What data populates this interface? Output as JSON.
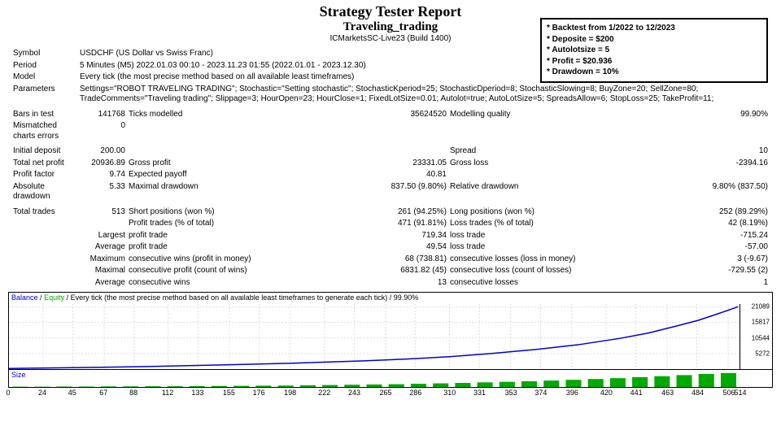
{
  "header": {
    "title": "Strategy Tester Report",
    "subtitle": "Traveling_trading",
    "broker": "ICMarketsSC-Live23 (Build 1400)"
  },
  "note_box": {
    "lines": [
      "Backtest from 1/2022 to 12/2023",
      "Deposite = $200",
      "Autolotsize = 5",
      "Profit = $20.936",
      "Drawdown = 10%"
    ]
  },
  "info": {
    "symbol_label": "Symbol",
    "symbol_value": "USDCHF (US Dollar vs Swiss Franc)",
    "period_label": "Period",
    "period_value": "5 Minutes (M5) 2022.01.03 00:10 - 2023.11.23 01:55 (2022.01.01 - 2023.12.30)",
    "model_label": "Model",
    "model_value": "Every tick (the most precise method based on all available least timeframes)",
    "params_label": "Parameters",
    "params_value": "Settings=\"ROBOT TRAVELING TRADING\"; Stochastic=\"Setting stochastic\"; StochasticKperiod=25; StochasticDperiod=8; StochasticSlowing=8; BuyZone=20; SellZone=80; TradeComments=\"Traveling trading\"; Slippage=3; HourOpen=23; HourClose=1; FixedLotSize=0.01; Autolot=true; AutoLotSize=5; SpreadsAllow=6; StopLoss=25; TakeProfit=11;"
  },
  "row_bars": {
    "c1_label": "Bars in test",
    "c1_val": "141768",
    "c2_label": "Ticks modelled",
    "c2_val": "35624520",
    "c3_label": "Modelling quality",
    "c3_val": "99.90%"
  },
  "row_mismatch": {
    "c1_label": "Mismatched charts errors",
    "c1_val": "0"
  },
  "row_deposit": {
    "c1_label": "Initial deposit",
    "c1_val": "200.00",
    "c3_label": "Spread",
    "c3_val": "10"
  },
  "row_profit": {
    "c1_label": "Total net profit",
    "c1_val": "20936.89",
    "c2_label": "Gross profit",
    "c2_val": "23331.05",
    "c3_label": "Gross loss",
    "c3_val": "-2394.16"
  },
  "row_pf": {
    "c1_label": "Profit factor",
    "c1_val": "9.74",
    "c2_label": "Expected payoff",
    "c2_val": "40.81"
  },
  "row_dd": {
    "c1_label": "Absolute drawdown",
    "c1_val": "5.33",
    "c2_label": "Maximal drawdown",
    "c2_val": "837.50 (9.80%)",
    "c3_label": "Relative drawdown",
    "c3_val": "9.80% (837.50)"
  },
  "row_trades": {
    "c1_label": "Total trades",
    "c1_val": "513",
    "c2_label": "Short positions (won %)",
    "c2_val": "261 (94.25%)",
    "c3_label": "Long positions (won %)",
    "c3_val": "252 (89.29%)"
  },
  "row_pt": {
    "c2_label": "Profit trades (% of total)",
    "c2_val": "471 (91.81%)",
    "c3_label": "Loss trades (% of total)",
    "c3_val": "42 (8.19%)"
  },
  "row_largest": {
    "prefix": "Largest",
    "c2_label": "profit trade",
    "c2_val": "719.34",
    "c3_label": "loss trade",
    "c3_val": "-715.24"
  },
  "row_avg": {
    "prefix": "Average",
    "c2_label": "profit trade",
    "c2_val": "49.54",
    "c3_label": "loss trade",
    "c3_val": "-57.00"
  },
  "row_maxc": {
    "prefix": "Maximum",
    "c2_label": "consecutive wins (profit in money)",
    "c2_val": "68 (738.81)",
    "c3_label": "consecutive losses (loss in money)",
    "c3_val": "3 (-9.67)"
  },
  "row_maxp": {
    "prefix": "Maximal",
    "c2_label": "consecutive profit (count of wins)",
    "c2_val": "6831.82 (45)",
    "c3_label": "consecutive loss (count of losses)",
    "c3_val": "-729.55 (2)"
  },
  "row_avgc": {
    "prefix": "Average",
    "c2_label": "consecutive wins",
    "c2_val": "13",
    "c3_label": "consecutive losses",
    "c3_val": "1"
  },
  "chart": {
    "header_balance": "Balance",
    "header_equity": "Equity",
    "header_rest": " / Every tick (the most precise method based on all available least timeframes to generate each tick) / 99.90%",
    "ylabels": [
      "21089",
      "15817",
      "10544",
      "5272"
    ],
    "ylim": [
      0,
      22000
    ],
    "line_color": "#0000cc",
    "grid_color": "#dcdcdc",
    "points": [
      [
        0,
        200
      ],
      [
        50,
        500
      ],
      [
        100,
        900
      ],
      [
        150,
        1400
      ],
      [
        200,
        2000
      ],
      [
        250,
        2800
      ],
      [
        280,
        3400
      ],
      [
        310,
        4200
      ],
      [
        340,
        5300
      ],
      [
        370,
        6600
      ],
      [
        400,
        8200
      ],
      [
        430,
        10400
      ],
      [
        450,
        12200
      ],
      [
        470,
        14600
      ],
      [
        485,
        16500
      ],
      [
        500,
        18900
      ],
      [
        513,
        21089
      ]
    ]
  },
  "size_chart": {
    "label": "Size",
    "bar_color": "#00aa00",
    "heights": [
      0.02,
      0.02,
      0.03,
      0.03,
      0.04,
      0.04,
      0.05,
      0.05,
      0.06,
      0.07,
      0.08,
      0.09,
      0.1,
      0.12,
      0.14,
      0.16,
      0.18,
      0.2,
      0.23,
      0.26,
      0.29,
      0.33,
      0.37,
      0.41,
      0.46,
      0.51,
      0.57,
      0.63,
      0.7,
      0.77,
      0.85,
      0.93,
      1.0
    ]
  },
  "xaxis": {
    "ticks": [
      "0",
      "24",
      "45",
      "67",
      "88",
      "112",
      "133",
      "155",
      "176",
      "198",
      "222",
      "243",
      "265",
      "286",
      "310",
      "331",
      "353",
      "374",
      "396",
      "420",
      "441",
      "463",
      "484",
      "506",
      "514"
    ],
    "max": 514
  },
  "colors": {
    "text": "#000000",
    "link": "#0000cc",
    "green": "#00aa00"
  }
}
